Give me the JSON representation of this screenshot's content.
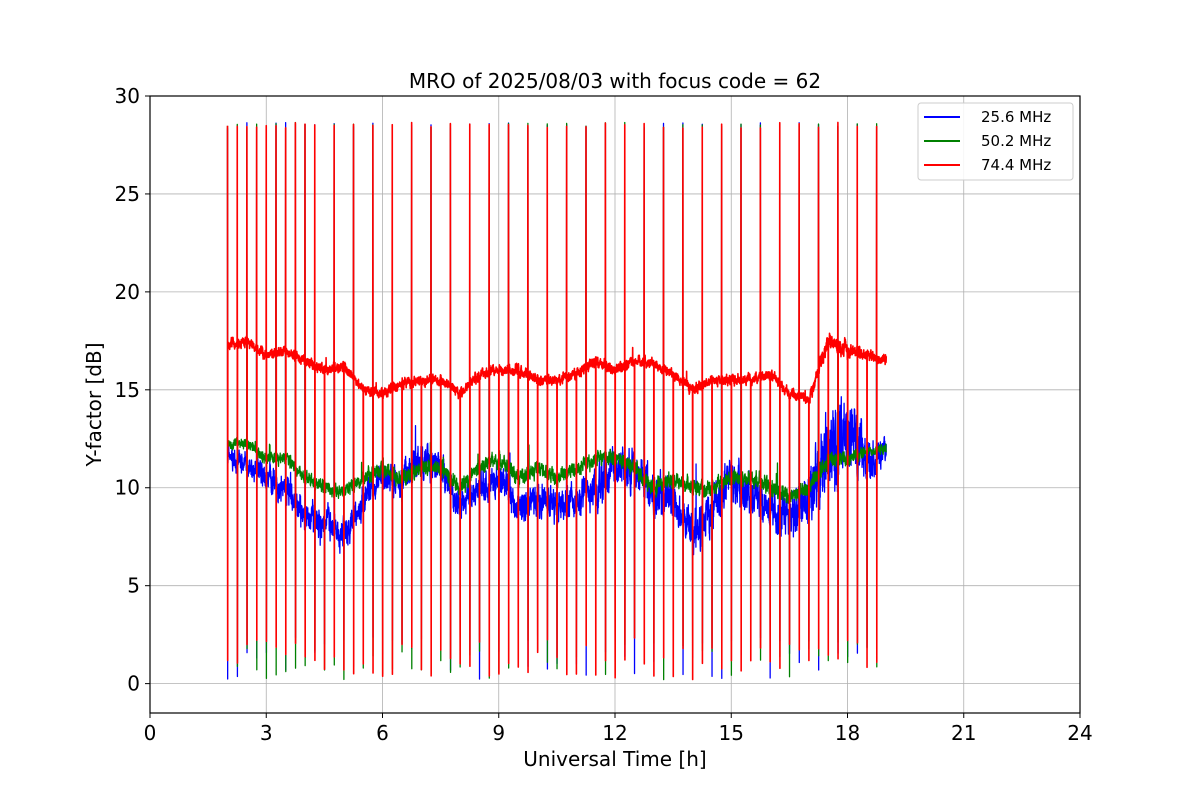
{
  "chart_data": {
    "type": "line",
    "title": "MRO of 2025/08/03 with focus code = 62",
    "xlabel": "Universal Time [h]",
    "ylabel": "Y-factor [dB]",
    "xlim": [
      0,
      24
    ],
    "ylim": [
      -1.5,
      30
    ],
    "xticks": [
      0,
      3,
      6,
      9,
      12,
      15,
      18,
      21,
      24
    ],
    "yticks": [
      0,
      5,
      10,
      15,
      20,
      25,
      30
    ],
    "grid": true,
    "legend_position": "top-right",
    "data_start_hour": 2.0,
    "data_end_hour": 19.0,
    "calibration_pulse_interval_hours": 0.25,
    "calibration_pulse_peak_db": 28.5,
    "calibration_pulse_low_db": 0.2,
    "series": [
      {
        "name": "25.6 MHz",
        "color": "#0000ff",
        "x": [
          2,
          2.5,
          3,
          3.5,
          4,
          4.5,
          5,
          5.5,
          6,
          6.5,
          7,
          7.5,
          8,
          8.5,
          9,
          9.5,
          10,
          10.5,
          11,
          11.5,
          12,
          12.5,
          13,
          13.5,
          14,
          14.5,
          15,
          15.5,
          16,
          16.5,
          17,
          17.5,
          18,
          18.5,
          19
        ],
        "y": [
          11.5,
          11.2,
          10.5,
          10.0,
          8.5,
          8.5,
          7.5,
          9.5,
          10.5,
          10.5,
          11.5,
          11.0,
          9.0,
          10.0,
          10.5,
          9.0,
          9.5,
          9.0,
          9.5,
          10.0,
          11.0,
          11.0,
          9.5,
          9.5,
          7.5,
          9.0,
          10.5,
          9.5,
          9.0,
          8.5,
          9.5,
          12.0,
          13.0,
          11.5,
          12.0
        ],
        "spread": [
          0.8,
          0.8,
          1.0,
          1.2,
          1.2,
          1.2,
          1.2,
          1.2,
          1.2,
          1.2,
          1.2,
          1.2,
          1.2,
          1.2,
          1.2,
          1.2,
          1.2,
          1.2,
          1.2,
          1.5,
          1.5,
          1.5,
          1.5,
          1.5,
          1.5,
          1.5,
          1.5,
          1.5,
          1.5,
          1.5,
          2.0,
          3.0,
          3.0,
          1.5,
          1.0
        ]
      },
      {
        "name": "50.2 MHz",
        "color": "#008000",
        "x": [
          2,
          2.5,
          3,
          3.5,
          4,
          4.5,
          5,
          5.5,
          6,
          6.5,
          7,
          7.5,
          8,
          8.5,
          9,
          9.5,
          10,
          10.5,
          11,
          11.5,
          12,
          12.5,
          13,
          13.5,
          14,
          14.5,
          15,
          15.5,
          16,
          16.5,
          17,
          17.5,
          18,
          18.5,
          19
        ],
        "y": [
          12.3,
          12.3,
          11.5,
          11.5,
          10.5,
          10.0,
          9.8,
          10.5,
          11.0,
          10.5,
          11.0,
          11.0,
          10.0,
          11.0,
          11.5,
          10.5,
          11.0,
          10.5,
          11.0,
          11.5,
          11.5,
          11.0,
          10.0,
          10.5,
          10.0,
          10.0,
          10.5,
          10.5,
          10.0,
          9.5,
          10.0,
          11.5,
          11.5,
          11.8,
          12.0
        ],
        "spread": [
          0.4,
          0.4,
          0.5,
          0.5,
          0.5,
          0.5,
          0.5,
          0.6,
          0.6,
          0.6,
          0.6,
          0.6,
          0.6,
          0.6,
          0.6,
          0.6,
          0.6,
          0.6,
          0.6,
          0.6,
          0.6,
          0.6,
          0.6,
          0.6,
          0.6,
          0.6,
          0.6,
          0.6,
          0.6,
          0.6,
          0.6,
          0.6,
          0.6,
          0.4,
          0.4
        ]
      },
      {
        "name": "74.4 MHz",
        "color": "#ff0000",
        "x": [
          2,
          2.5,
          3,
          3.5,
          4,
          4.5,
          5,
          5.5,
          6,
          6.5,
          7,
          7.5,
          8,
          8.5,
          9,
          9.5,
          10,
          10.5,
          11,
          11.5,
          12,
          12.5,
          13,
          13.5,
          14,
          14.5,
          15,
          15.5,
          16,
          16.5,
          17,
          17.5,
          18,
          18.5,
          19
        ],
        "y": [
          17.3,
          17.5,
          16.8,
          17.0,
          16.5,
          16.0,
          16.2,
          15.0,
          14.8,
          15.3,
          15.5,
          15.5,
          14.8,
          15.8,
          16.0,
          16.0,
          15.5,
          15.5,
          15.8,
          16.5,
          16.0,
          16.5,
          16.3,
          15.8,
          15.0,
          15.5,
          15.5,
          15.5,
          15.8,
          14.8,
          14.5,
          17.5,
          17.0,
          16.8,
          16.5
        ],
        "spread": [
          0.4,
          0.4,
          0.4,
          0.4,
          0.4,
          0.4,
          0.4,
          0.4,
          0.4,
          0.4,
          0.4,
          0.4,
          0.4,
          0.4,
          0.4,
          0.4,
          0.4,
          0.4,
          0.4,
          0.4,
          0.4,
          0.4,
          0.4,
          0.4,
          0.4,
          0.4,
          0.4,
          0.4,
          0.4,
          0.4,
          0.4,
          0.6,
          0.6,
          0.4,
          0.4
        ]
      }
    ]
  }
}
